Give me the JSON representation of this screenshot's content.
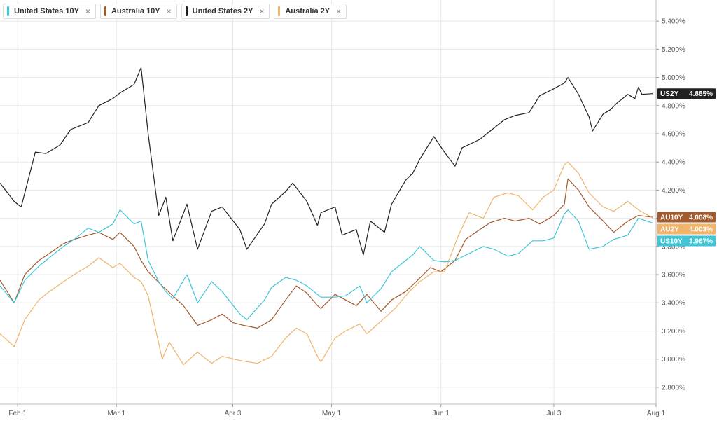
{
  "legend": [
    {
      "label": "United States 10Y",
      "color": "#3fc5d6"
    },
    {
      "label": "Australia 10Y",
      "color": "#a35a2c"
    },
    {
      "label": "United States 2Y",
      "color": "#222222"
    },
    {
      "label": "Australia 2Y",
      "color": "#f0b46b"
    }
  ],
  "close_glyph": "×",
  "colors": {
    "grid": "#e8e8e8",
    "axis_text": "#555555"
  },
  "chart_data": {
    "type": "line",
    "x_ticks": [
      "Feb 1",
      "Mar 1",
      "Apr 3",
      "May 1",
      "Jun 1",
      "Jul 3",
      "Aug 1"
    ],
    "x_tick_dates": [
      "2023-02-01",
      "2023-03-01",
      "2023-04-03",
      "2023-05-01",
      "2023-06-01",
      "2023-07-03",
      "2023-08-01"
    ],
    "xlim": [
      "2023-01-27",
      "2023-08-01"
    ],
    "y_ticks": [
      "2.800%",
      "3.000%",
      "3.200%",
      "3.400%",
      "3.600%",
      "3.800%",
      "4.000%",
      "4.200%",
      "4.400%",
      "4.600%",
      "4.800%",
      "5.000%",
      "5.200%",
      "5.400%"
    ],
    "ylim": [
      2.68,
      5.55
    ],
    "grid": true,
    "series": [
      {
        "name": "United States 2Y",
        "short": "US2Y",
        "last": "4.885%",
        "color": "#222222",
        "points": [
          [
            "2023-01-27",
            4.25
          ],
          [
            "2023-01-31",
            4.12
          ],
          [
            "2023-02-02",
            4.08
          ],
          [
            "2023-02-06",
            4.47
          ],
          [
            "2023-02-09",
            4.46
          ],
          [
            "2023-02-13",
            4.52
          ],
          [
            "2023-02-16",
            4.63
          ],
          [
            "2023-02-21",
            4.68
          ],
          [
            "2023-02-24",
            4.8
          ],
          [
            "2023-02-28",
            4.85
          ],
          [
            "2023-03-02",
            4.89
          ],
          [
            "2023-03-06",
            4.95
          ],
          [
            "2023-03-08",
            5.07
          ],
          [
            "2023-03-10",
            4.6
          ],
          [
            "2023-03-13",
            4.02
          ],
          [
            "2023-03-15",
            4.15
          ],
          [
            "2023-03-17",
            3.84
          ],
          [
            "2023-03-21",
            4.1
          ],
          [
            "2023-03-24",
            3.78
          ],
          [
            "2023-03-28",
            4.05
          ],
          [
            "2023-03-31",
            4.08
          ],
          [
            "2023-04-05",
            3.92
          ],
          [
            "2023-04-07",
            3.78
          ],
          [
            "2023-04-12",
            3.96
          ],
          [
            "2023-04-14",
            4.1
          ],
          [
            "2023-04-18",
            4.19
          ],
          [
            "2023-04-20",
            4.25
          ],
          [
            "2023-04-24",
            4.12
          ],
          [
            "2023-04-27",
            3.95
          ],
          [
            "2023-04-28",
            4.04
          ],
          [
            "2023-05-02",
            4.08
          ],
          [
            "2023-05-04",
            3.88
          ],
          [
            "2023-05-08",
            3.92
          ],
          [
            "2023-05-10",
            3.74
          ],
          [
            "2023-05-12",
            3.98
          ],
          [
            "2023-05-16",
            3.9
          ],
          [
            "2023-05-18",
            4.1
          ],
          [
            "2023-05-22",
            4.27
          ],
          [
            "2023-05-24",
            4.32
          ],
          [
            "2023-05-26",
            4.42
          ],
          [
            "2023-05-30",
            4.58
          ],
          [
            "2023-06-02",
            4.47
          ],
          [
            "2023-06-05",
            4.37
          ],
          [
            "2023-06-07",
            4.5
          ],
          [
            "2023-06-12",
            4.56
          ],
          [
            "2023-06-15",
            4.62
          ],
          [
            "2023-06-19",
            4.7
          ],
          [
            "2023-06-22",
            4.73
          ],
          [
            "2023-06-26",
            4.75
          ],
          [
            "2023-06-29",
            4.87
          ],
          [
            "2023-07-03",
            4.92
          ],
          [
            "2023-07-06",
            4.96
          ],
          [
            "2023-07-07",
            5.0
          ],
          [
            "2023-07-10",
            4.88
          ],
          [
            "2023-07-13",
            4.72
          ],
          [
            "2023-07-14",
            4.62
          ],
          [
            "2023-07-17",
            4.74
          ],
          [
            "2023-07-19",
            4.77
          ],
          [
            "2023-07-21",
            4.82
          ],
          [
            "2023-07-24",
            4.88
          ],
          [
            "2023-07-26",
            4.85
          ],
          [
            "2023-07-27",
            4.93
          ],
          [
            "2023-07-28",
            4.88
          ],
          [
            "2023-07-31",
            4.885
          ]
        ]
      },
      {
        "name": "Australia 10Y",
        "short": "AU10Y",
        "last": "4.008%",
        "color": "#a35a2c",
        "points": [
          [
            "2023-01-27",
            3.56
          ],
          [
            "2023-01-31",
            3.4
          ],
          [
            "2023-02-03",
            3.6
          ],
          [
            "2023-02-07",
            3.7
          ],
          [
            "2023-02-10",
            3.75
          ],
          [
            "2023-02-14",
            3.82
          ],
          [
            "2023-02-17",
            3.85
          ],
          [
            "2023-02-21",
            3.88
          ],
          [
            "2023-02-24",
            3.9
          ],
          [
            "2023-02-28",
            3.85
          ],
          [
            "2023-03-02",
            3.9
          ],
          [
            "2023-03-06",
            3.8
          ],
          [
            "2023-03-08",
            3.7
          ],
          [
            "2023-03-10",
            3.62
          ],
          [
            "2023-03-14",
            3.52
          ],
          [
            "2023-03-17",
            3.45
          ],
          [
            "2023-03-20",
            3.38
          ],
          [
            "2023-03-24",
            3.24
          ],
          [
            "2023-03-28",
            3.28
          ],
          [
            "2023-03-31",
            3.32
          ],
          [
            "2023-04-03",
            3.26
          ],
          [
            "2023-04-06",
            3.24
          ],
          [
            "2023-04-10",
            3.22
          ],
          [
            "2023-04-14",
            3.28
          ],
          [
            "2023-04-18",
            3.42
          ],
          [
            "2023-04-21",
            3.52
          ],
          [
            "2023-04-24",
            3.47
          ],
          [
            "2023-04-27",
            3.38
          ],
          [
            "2023-04-28",
            3.36
          ],
          [
            "2023-05-02",
            3.46
          ],
          [
            "2023-05-05",
            3.42
          ],
          [
            "2023-05-08",
            3.38
          ],
          [
            "2023-05-11",
            3.46
          ],
          [
            "2023-05-15",
            3.34
          ],
          [
            "2023-05-18",
            3.42
          ],
          [
            "2023-05-22",
            3.48
          ],
          [
            "2023-05-25",
            3.55
          ],
          [
            "2023-05-29",
            3.65
          ],
          [
            "2023-06-01",
            3.62
          ],
          [
            "2023-06-05",
            3.7
          ],
          [
            "2023-06-08",
            3.85
          ],
          [
            "2023-06-12",
            3.92
          ],
          [
            "2023-06-15",
            3.97
          ],
          [
            "2023-06-19",
            4.0
          ],
          [
            "2023-06-22",
            3.98
          ],
          [
            "2023-06-26",
            4.0
          ],
          [
            "2023-06-29",
            3.96
          ],
          [
            "2023-07-03",
            4.02
          ],
          [
            "2023-07-06",
            4.1
          ],
          [
            "2023-07-07",
            4.28
          ],
          [
            "2023-07-10",
            4.2
          ],
          [
            "2023-07-13",
            4.08
          ],
          [
            "2023-07-17",
            3.98
          ],
          [
            "2023-07-20",
            3.9
          ],
          [
            "2023-07-24",
            3.98
          ],
          [
            "2023-07-27",
            4.02
          ],
          [
            "2023-07-31",
            4.008
          ]
        ]
      },
      {
        "name": "Australia 2Y",
        "short": "AU2Y",
        "last": "4.003%",
        "color": "#f0b46b",
        "points": [
          [
            "2023-01-27",
            3.18
          ],
          [
            "2023-01-31",
            3.09
          ],
          [
            "2023-02-03",
            3.28
          ],
          [
            "2023-02-07",
            3.42
          ],
          [
            "2023-02-10",
            3.48
          ],
          [
            "2023-02-14",
            3.55
          ],
          [
            "2023-02-17",
            3.6
          ],
          [
            "2023-02-21",
            3.66
          ],
          [
            "2023-02-24",
            3.72
          ],
          [
            "2023-02-28",
            3.65
          ],
          [
            "2023-03-02",
            3.68
          ],
          [
            "2023-03-06",
            3.58
          ],
          [
            "2023-03-08",
            3.55
          ],
          [
            "2023-03-10",
            3.45
          ],
          [
            "2023-03-14",
            3.0
          ],
          [
            "2023-03-16",
            3.12
          ],
          [
            "2023-03-20",
            2.96
          ],
          [
            "2023-03-24",
            3.05
          ],
          [
            "2023-03-28",
            2.97
          ],
          [
            "2023-03-31",
            3.02
          ],
          [
            "2023-04-05",
            2.99
          ],
          [
            "2023-04-10",
            2.97
          ],
          [
            "2023-04-14",
            3.02
          ],
          [
            "2023-04-18",
            3.15
          ],
          [
            "2023-04-21",
            3.22
          ],
          [
            "2023-04-24",
            3.18
          ],
          [
            "2023-04-27",
            3.02
          ],
          [
            "2023-04-28",
            2.98
          ],
          [
            "2023-05-02",
            3.15
          ],
          [
            "2023-05-05",
            3.2
          ],
          [
            "2023-05-09",
            3.25
          ],
          [
            "2023-05-11",
            3.18
          ],
          [
            "2023-05-15",
            3.27
          ],
          [
            "2023-05-19",
            3.36
          ],
          [
            "2023-05-23",
            3.48
          ],
          [
            "2023-05-26",
            3.55
          ],
          [
            "2023-05-30",
            3.62
          ],
          [
            "2023-06-02",
            3.62
          ],
          [
            "2023-06-06",
            3.88
          ],
          [
            "2023-06-09",
            4.04
          ],
          [
            "2023-06-13",
            4.0
          ],
          [
            "2023-06-16",
            4.15
          ],
          [
            "2023-06-20",
            4.18
          ],
          [
            "2023-06-23",
            4.16
          ],
          [
            "2023-06-27",
            4.06
          ],
          [
            "2023-06-30",
            4.15
          ],
          [
            "2023-07-03",
            4.2
          ],
          [
            "2023-07-06",
            4.38
          ],
          [
            "2023-07-07",
            4.4
          ],
          [
            "2023-07-10",
            4.32
          ],
          [
            "2023-07-13",
            4.18
          ],
          [
            "2023-07-17",
            4.08
          ],
          [
            "2023-07-20",
            4.05
          ],
          [
            "2023-07-24",
            4.12
          ],
          [
            "2023-07-27",
            4.06
          ],
          [
            "2023-07-31",
            4.003
          ]
        ]
      },
      {
        "name": "United States 10Y",
        "short": "US10Y",
        "last": "3.967%",
        "color": "#3fc5d6",
        "points": [
          [
            "2023-01-27",
            3.52
          ],
          [
            "2023-01-31",
            3.4
          ],
          [
            "2023-02-03",
            3.56
          ],
          [
            "2023-02-07",
            3.66
          ],
          [
            "2023-02-10",
            3.72
          ],
          [
            "2023-02-14",
            3.8
          ],
          [
            "2023-02-17",
            3.85
          ],
          [
            "2023-02-21",
            3.93
          ],
          [
            "2023-02-24",
            3.9
          ],
          [
            "2023-02-28",
            3.96
          ],
          [
            "2023-03-02",
            4.06
          ],
          [
            "2023-03-06",
            3.96
          ],
          [
            "2023-03-08",
            3.98
          ],
          [
            "2023-03-10",
            3.7
          ],
          [
            "2023-03-13",
            3.55
          ],
          [
            "2023-03-15",
            3.48
          ],
          [
            "2023-03-17",
            3.43
          ],
          [
            "2023-03-21",
            3.6
          ],
          [
            "2023-03-24",
            3.4
          ],
          [
            "2023-03-28",
            3.55
          ],
          [
            "2023-03-31",
            3.48
          ],
          [
            "2023-04-05",
            3.32
          ],
          [
            "2023-04-07",
            3.28
          ],
          [
            "2023-04-12",
            3.42
          ],
          [
            "2023-04-14",
            3.51
          ],
          [
            "2023-04-18",
            3.58
          ],
          [
            "2023-04-21",
            3.56
          ],
          [
            "2023-04-24",
            3.52
          ],
          [
            "2023-04-28",
            3.44
          ],
          [
            "2023-05-02",
            3.44
          ],
          [
            "2023-05-05",
            3.45
          ],
          [
            "2023-05-09",
            3.52
          ],
          [
            "2023-05-11",
            3.4
          ],
          [
            "2023-05-15",
            3.5
          ],
          [
            "2023-05-18",
            3.62
          ],
          [
            "2023-05-22",
            3.7
          ],
          [
            "2023-05-24",
            3.74
          ],
          [
            "2023-05-26",
            3.8
          ],
          [
            "2023-05-30",
            3.7
          ],
          [
            "2023-06-02",
            3.69
          ],
          [
            "2023-06-05",
            3.7
          ],
          [
            "2023-06-09",
            3.75
          ],
          [
            "2023-06-13",
            3.8
          ],
          [
            "2023-06-16",
            3.78
          ],
          [
            "2023-06-20",
            3.73
          ],
          [
            "2023-06-23",
            3.75
          ],
          [
            "2023-06-27",
            3.84
          ],
          [
            "2023-06-30",
            3.84
          ],
          [
            "2023-07-03",
            3.86
          ],
          [
            "2023-07-06",
            4.03
          ],
          [
            "2023-07-07",
            4.06
          ],
          [
            "2023-07-10",
            3.98
          ],
          [
            "2023-07-13",
            3.78
          ],
          [
            "2023-07-17",
            3.8
          ],
          [
            "2023-07-20",
            3.85
          ],
          [
            "2023-07-24",
            3.88
          ],
          [
            "2023-07-27",
            4.0
          ],
          [
            "2023-07-31",
            3.967
          ]
        ]
      }
    ]
  }
}
